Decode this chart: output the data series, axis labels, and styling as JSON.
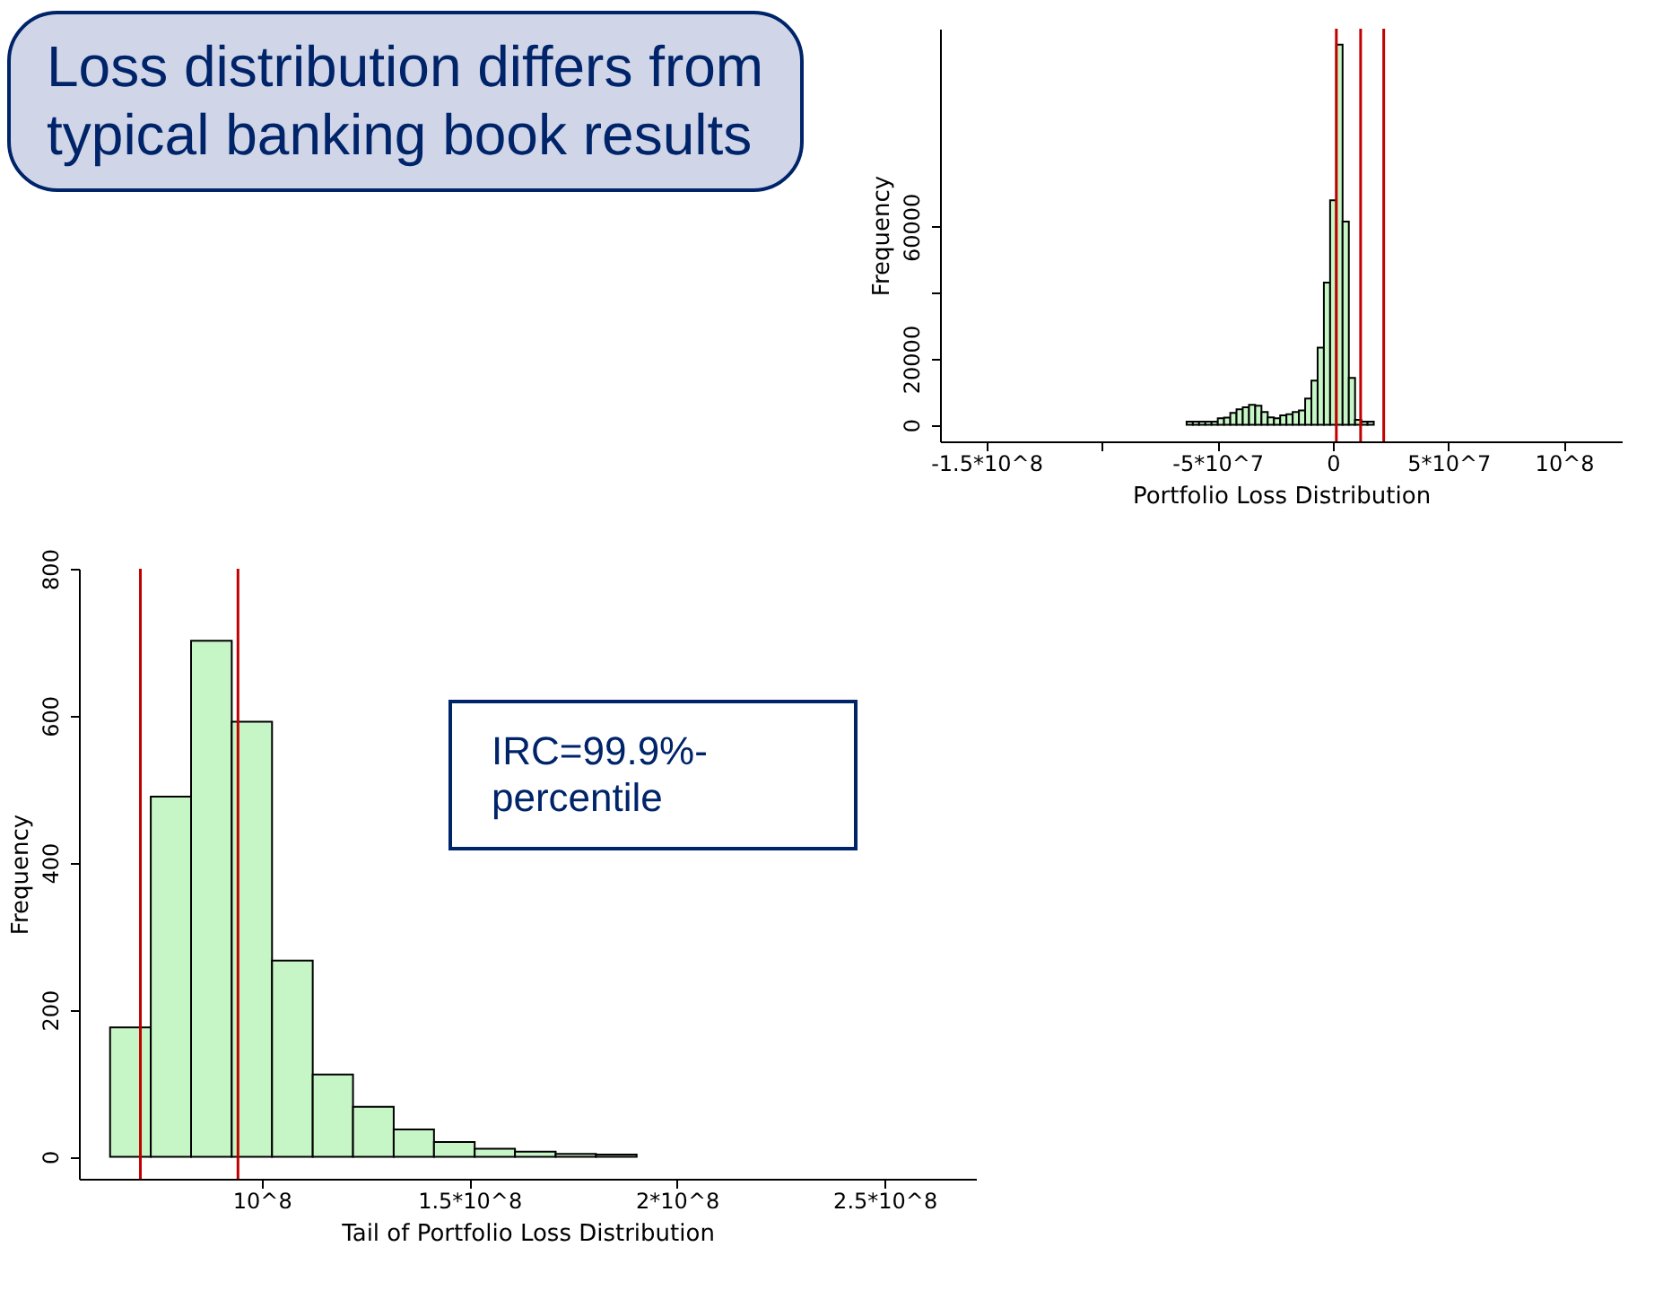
{
  "chart_data": [
    {
      "type": "histogram",
      "xlabel": "Portfolio Loss Distribution",
      "ylabel": "Frequency",
      "bins": [
        -63300000,
        -60600000,
        -57900000,
        -55200000,
        -52500000,
        -49800000,
        -47100000,
        -44400000,
        -41700000,
        -39000000,
        -36300000,
        -33600000,
        -30900000,
        -28200000,
        -25500000,
        -22800000,
        -20100000,
        -17400000,
        -14700000,
        -12000000,
        -9300000,
        -6600000,
        -3900000,
        -1200000,
        1500000,
        4200000,
        6900000,
        9600000,
        12300000,
        15000000,
        17700000
      ],
      "values": [
        1000,
        1000,
        1000,
        1000,
        1000,
        2000,
        2200,
        3600,
        4700,
        5300,
        6100,
        5800,
        3900,
        2300,
        2000,
        2900,
        3200,
        3900,
        4400,
        8000,
        13400,
        23400,
        43100,
        68000,
        115200,
        61600,
        14200,
        1500,
        1000,
        1000
      ],
      "color": "#c6f5c6",
      "xlim": [
        -170000000,
        125000000
      ],
      "xticks": [
        {
          "value": -150000000,
          "label": "-1.5*10^8"
        },
        {
          "value": -100000000,
          "label": null
        },
        {
          "value": -50000000,
          "label": "-5*10^7"
        },
        0,
        {
          "value": 50000000,
          "label": "5*10^7"
        },
        {
          "value": 100000000,
          "label": "10^8"
        }
      ],
      "ylim": [
        -5000,
        120000
      ],
      "yticks": [
        0,
        20000,
        {
          "value": 40000,
          "label": null
        },
        60000
      ],
      "ref_lines": [
        {
          "axis": "x",
          "value": 1500000,
          "color": "#c00000"
        },
        {
          "axis": "x",
          "value": 12000000,
          "color": "#c00000"
        },
        {
          "axis": "x",
          "value": 22000000,
          "color": "#c00000"
        }
      ],
      "annotations": [
        "Loss distribution differs from typical banking book results"
      ],
      "grid": false
    },
    {
      "type": "histogram",
      "xlabel": "Tail of Portfolio Loss Distribution",
      "ylabel": "Frequency",
      "bins": [
        63500000,
        73300000,
        83000000,
        92800000,
        102500000,
        112300000,
        122000000,
        131800000,
        141500000,
        151300000,
        161000000,
        170800000,
        180500000,
        190300000
      ],
      "values": [
        176,
        490,
        702,
        592,
        267,
        112,
        68,
        37,
        20,
        11,
        7,
        4,
        3
      ],
      "color": "#c6f5c6",
      "xlim": [
        56000000,
        272000000
      ],
      "xticks": [
        {
          "value": 100000000,
          "label": "10^8"
        },
        {
          "value": 150000000,
          "label": "1.5*10^8"
        },
        {
          "value": 200000000,
          "label": "2*10^8"
        },
        {
          "value": 250000000,
          "label": "2.5*10^8"
        }
      ],
      "ylim": [
        -30,
        800
      ],
      "yticks": [
        0,
        200,
        400,
        600,
        800
      ],
      "ref_lines": [
        {
          "axis": "x",
          "value": 70800000,
          "color": "#c00000"
        },
        {
          "axis": "x",
          "value": 94300000,
          "color": "#c00000"
        }
      ],
      "annotations": [
        "IRC=99.9%-percentile"
      ],
      "grid": false
    }
  ]
}
